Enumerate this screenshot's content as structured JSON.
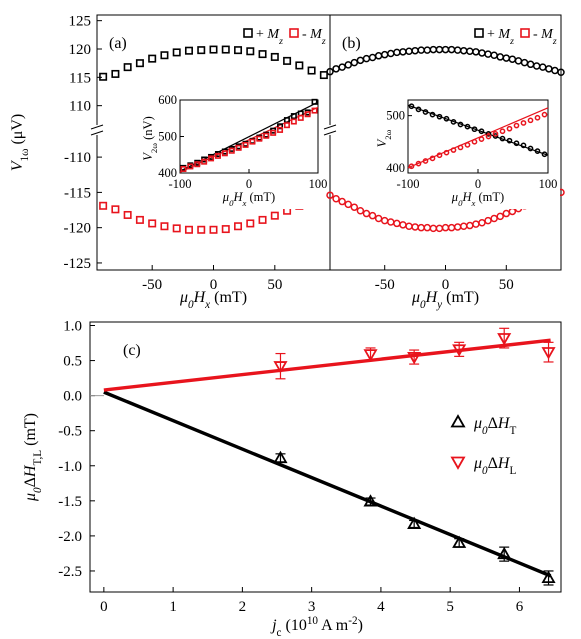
{
  "chart_data": [
    {
      "id": "a",
      "type": "scatter",
      "panel_label": "(a)",
      "xlabel_text": "μ0Hx (mT)",
      "ylabel_text": "V1ω (μV)",
      "xlim": [
        -95,
        95
      ],
      "ylim_upper": [
        108,
        126
      ],
      "ylim_lower": [
        -126,
        -108
      ],
      "xticks": [
        -50,
        0,
        50
      ],
      "yticks_upper": [
        110,
        115,
        120,
        125
      ],
      "yticks_lower": [
        -110,
        -115,
        -120,
        -125
      ],
      "legend": [
        "+ Mz",
        "- Mz"
      ],
      "series": [
        {
          "name": "+ Mz",
          "color": "#000000",
          "marker": "square",
          "x": [
            -90,
            -80,
            -70,
            -60,
            -50,
            -40,
            -30,
            -20,
            -10,
            0,
            10,
            20,
            30,
            40,
            50,
            60,
            70,
            80,
            90
          ],
          "y": [
            115.1,
            115.6,
            116.8,
            117.5,
            118.3,
            118.9,
            119.4,
            119.7,
            119.8,
            119.9,
            119.9,
            119.8,
            119.6,
            119.1,
            118.6,
            117.9,
            117.1,
            116.2,
            115.4
          ]
        },
        {
          "name": "- Mz",
          "color": "#e8141d",
          "marker": "square",
          "x": [
            -90,
            -80,
            -70,
            -60,
            -50,
            -40,
            -30,
            -20,
            -10,
            0,
            10,
            20,
            30,
            40,
            50,
            60,
            70,
            80,
            90
          ],
          "y": [
            -116.9,
            -117.4,
            -118.2,
            -118.9,
            -119.4,
            -119.8,
            -120.1,
            -120.3,
            -120.3,
            -120.3,
            -120.2,
            -119.8,
            -119.4,
            -118.9,
            -118.3,
            -117.6,
            -116.9,
            -116.2,
            -115.7
          ]
        }
      ],
      "inset": {
        "xlabel_text": "μ0Hx (mT)",
        "ylabel_text": "V2ω (nV)",
        "xlim": [
          -100,
          100
        ],
        "ylim": [
          400,
          600
        ],
        "xticks": [
          -100,
          0,
          100
        ],
        "yticks": [
          400,
          500,
          600
        ],
        "series": [
          {
            "name": "+ Mz",
            "color": "#000000",
            "marker": "square",
            "x": [
              -95,
              -85,
              -75,
              -65,
              -55,
              -45,
              -35,
              -25,
              -15,
              -5,
              5,
              15,
              25,
              35,
              45,
              55,
              65,
              75,
              85,
              95
            ],
            "y": [
              414,
              421,
              428,
              437,
              444,
              452,
              459,
              466,
              473,
              480,
              488,
              497,
              505,
              516,
              528,
              545,
              556,
              563,
              566,
              595
            ]
          },
          {
            "name": "- Mz",
            "color": "#e8141d",
            "marker": "square",
            "x": [
              -95,
              -85,
              -75,
              -65,
              -55,
              -45,
              -35,
              -25,
              -15,
              -5,
              5,
              15,
              25,
              35,
              45,
              55,
              65,
              75,
              85,
              95
            ],
            "y": [
              411,
              418,
              424,
              431,
              440,
              447,
              454,
              461,
              469,
              477,
              486,
              494,
              502,
              510,
              518,
              531,
              541,
              551,
              561,
              571
            ]
          }
        ],
        "fits": [
          {
            "color": "#000000",
            "x": [
              -100,
              100
            ],
            "y": [
              405,
              594
            ]
          },
          {
            "color": "#e8141d",
            "x": [
              -100,
              100
            ],
            "y": [
              402,
              580
            ]
          }
        ]
      }
    },
    {
      "id": "b",
      "type": "scatter",
      "panel_label": "(b)",
      "xlabel_text": "μ0Hy (mT)",
      "xlim": [
        -95,
        95
      ],
      "ylim_upper": [
        108,
        126
      ],
      "ylim_lower": [
        -126,
        -108
      ],
      "xticks": [
        -50,
        0,
        50
      ],
      "legend": [
        "+ Mz",
        "- Mz"
      ],
      "series": [
        {
          "name": "+ Mz",
          "color": "#000000",
          "marker": "circle",
          "x": [
            -95,
            -90,
            -85,
            -80,
            -75,
            -70,
            -65,
            -60,
            -55,
            -50,
            -45,
            -40,
            -35,
            -30,
            -25,
            -20,
            -15,
            -10,
            -5,
            0,
            5,
            10,
            15,
            20,
            25,
            30,
            35,
            40,
            45,
            50,
            55,
            60,
            65,
            70,
            75,
            80,
            85,
            90,
            95
          ],
          "y": [
            116.0,
            116.5,
            116.8,
            117.2,
            117.6,
            118.0,
            118.3,
            118.5,
            118.8,
            119.0,
            119.2,
            119.4,
            119.5,
            119.6,
            119.7,
            119.8,
            119.8,
            119.9,
            119.9,
            119.9,
            119.9,
            119.8,
            119.7,
            119.6,
            119.5,
            119.3,
            119.1,
            118.9,
            118.6,
            118.4,
            118.2,
            117.9,
            117.6,
            117.3,
            117.0,
            116.8,
            116.5,
            116.2,
            115.9
          ]
        },
        {
          "name": "- Mz",
          "color": "#e8141d",
          "marker": "circle",
          "x": [
            -95,
            -90,
            -85,
            -80,
            -75,
            -70,
            -65,
            -60,
            -55,
            -50,
            -45,
            -40,
            -35,
            -30,
            -25,
            -20,
            -15,
            -10,
            -5,
            0,
            5,
            10,
            15,
            20,
            25,
            30,
            35,
            40,
            45,
            50,
            55,
            60,
            65,
            70,
            75,
            80,
            85,
            90,
            95
          ],
          "y": [
            -115.4,
            -115.9,
            -116.3,
            -116.7,
            -117.1,
            -117.6,
            -118.0,
            -118.3,
            -118.7,
            -119.0,
            -119.2,
            -119.4,
            -119.6,
            -119.8,
            -119.9,
            -120.0,
            -120.0,
            -120.1,
            -120.1,
            -120.0,
            -120.0,
            -119.9,
            -119.8,
            -119.7,
            -119.5,
            -119.3,
            -119.0,
            -118.7,
            -118.4,
            -118.0,
            -117.7,
            -117.3,
            -116.9,
            -116.6,
            -116.2,
            -115.9,
            -115.6,
            -115.3,
            -115.0
          ]
        }
      ],
      "inset": {
        "xlabel_text": "μ0Hx (mT)",
        "ylabel_text": "V2ω",
        "xlim": [
          -100,
          100
        ],
        "ylim": [
          390,
          530
        ],
        "xticks": [
          -100,
          0,
          100
        ],
        "yticks": [
          400,
          500
        ],
        "series": [
          {
            "name": "+ Mz",
            "color": "#000000",
            "marker": "circle",
            "x": [
              -95,
              -85,
              -75,
              -65,
              -55,
              -45,
              -35,
              -25,
              -15,
              -5,
              5,
              15,
              25,
              35,
              45,
              55,
              65,
              75,
              85,
              95
            ],
            "y": [
              518,
              512,
              507,
              502,
              498,
              494,
              488,
              483,
              479,
              474,
              470,
              465,
              461,
              456,
              452,
              447,
              443,
              437,
              432,
              426
            ]
          },
          {
            "name": "- Mz",
            "color": "#e8141d",
            "marker": "circle",
            "x": [
              -95,
              -85,
              -75,
              -65,
              -55,
              -45,
              -35,
              -25,
              -15,
              -5,
              5,
              15,
              25,
              35,
              45,
              55,
              65,
              75,
              85,
              95
            ],
            "y": [
              403,
              408,
              413,
              418,
              424,
              429,
              434,
              439,
              444,
              450,
              455,
              460,
              465,
              470,
              475,
              481,
              486,
              491,
              496,
              502
            ]
          }
        ],
        "fits": [
          {
            "color": "#000000",
            "x": [
              -100,
              100
            ],
            "y": [
              520,
              424
            ]
          },
          {
            "color": "#e8141d",
            "x": [
              -100,
              100
            ],
            "y": [
              400,
              515
            ]
          }
        ]
      }
    },
    {
      "id": "c",
      "type": "scatter",
      "panel_label": "(c)",
      "xlabel_text": "jc (10¹⁰ A m⁻²)",
      "ylabel_text": "μ0ΔHT,L (mT)",
      "xlim": [
        -0.2,
        6.6
      ],
      "ylim": [
        -2.8,
        1.05
      ],
      "xticks": [
        0,
        1,
        2,
        3,
        4,
        5,
        6
      ],
      "yticks": [
        1.0,
        0.5,
        0.0,
        -0.5,
        -1.0,
        -1.5,
        -2.0,
        -2.5
      ],
      "ytick_labels": [
        "1.0",
        "0.5",
        "0.0",
        "-0.5",
        "-1.0",
        "-1.5",
        "-2.0",
        "-2.5"
      ],
      "legend": [
        "μ0ΔHT",
        "μ0ΔHL"
      ],
      "series": [
        {
          "name": "μ0ΔHT",
          "color": "#000000",
          "marker": "triangle-up",
          "x": [
            2.55,
            3.85,
            4.48,
            5.13,
            5.78,
            6.42
          ],
          "y": [
            -0.89,
            -1.51,
            -1.83,
            -2.1,
            -2.26,
            -2.6
          ],
          "err": [
            0.06,
            0.05,
            0.05,
            0.06,
            0.1,
            0.1
          ]
        },
        {
          "name": "μ0ΔHL",
          "color": "#e8141d",
          "marker": "triangle-down",
          "x": [
            2.55,
            3.85,
            4.48,
            5.13,
            5.78,
            6.42
          ],
          "y": [
            0.42,
            0.59,
            0.55,
            0.66,
            0.82,
            0.62
          ],
          "err": [
            0.18,
            0.09,
            0.1,
            0.1,
            0.14,
            0.14
          ]
        }
      ],
      "fits": [
        {
          "color": "#000000",
          "x": [
            0,
            6.45
          ],
          "y": [
            0.05,
            -2.57
          ]
        },
        {
          "color": "#e8141d",
          "x": [
            0,
            6.45
          ],
          "y": [
            0.08,
            0.79
          ]
        }
      ]
    }
  ]
}
